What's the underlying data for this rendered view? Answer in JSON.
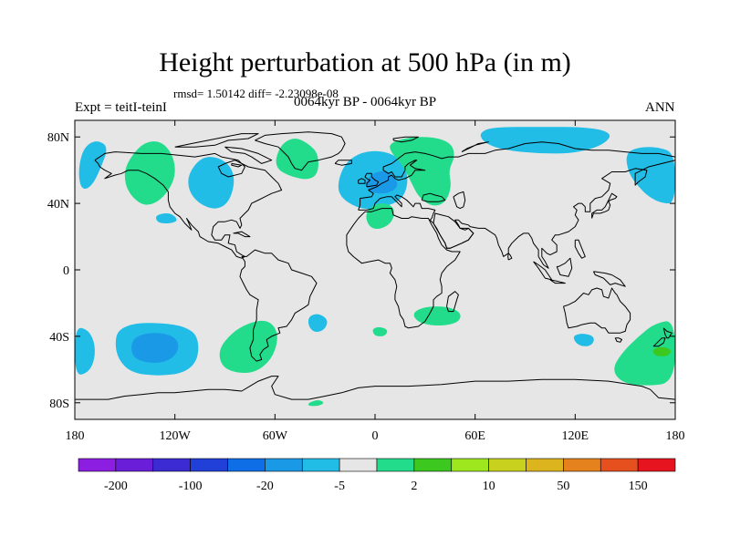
{
  "header": {
    "title": "Height perturbation at 500 hPa (in m)",
    "stats": "rmsd= 1.50142 diff= -2.23098e-08",
    "period": "0064kyr BP - 0064kyr BP",
    "experiment": "Expt = teitI-teinI",
    "season": "ANN"
  },
  "chart_data": {
    "type": "heatmap",
    "title": "Height perturbation at 500 hPa (in m)",
    "xlabel": "",
    "ylabel": "",
    "xlim": [
      -180,
      180
    ],
    "ylim": [
      -90,
      90
    ],
    "x_ticks": [
      {
        "value": -180,
        "label": "180"
      },
      {
        "value": -120,
        "label": "120W"
      },
      {
        "value": -60,
        "label": "60W"
      },
      {
        "value": 0,
        "label": "0"
      },
      {
        "value": 60,
        "label": "60E"
      },
      {
        "value": 120,
        "label": "120E"
      },
      {
        "value": 180,
        "label": "180"
      }
    ],
    "y_ticks": [
      {
        "value": 80,
        "label": "80N"
      },
      {
        "value": 40,
        "label": "40N"
      },
      {
        "value": 0,
        "label": "0"
      },
      {
        "value": -40,
        "label": "40S"
      },
      {
        "value": -80,
        "label": "80S"
      }
    ],
    "colorbar": {
      "colors": [
        "#8b1ee0",
        "#6a1ed8",
        "#3c2bd2",
        "#2140d8",
        "#0e6ee6",
        "#1a9ae6",
        "#22bde6",
        "#e6e6e6",
        "#22dc8c",
        "#3cc81e",
        "#9ee61e",
        "#c8d21e",
        "#dcb41e",
        "#e6821e",
        "#e6501e",
        "#e6141e"
      ],
      "tick_labels": [
        "-200",
        "-100",
        "-20",
        "-5",
        "2",
        "10",
        "50",
        "150"
      ]
    },
    "anomaly_regions": [
      {
        "category": "-5 to -2",
        "color": "#22bde6",
        "polygon": [
          [
            -178,
            58
          ],
          [
            -176,
            70
          ],
          [
            -172,
            76
          ],
          [
            -166,
            78
          ],
          [
            -160,
            74
          ],
          [
            -164,
            62
          ],
          [
            -170,
            50
          ],
          [
            -176,
            48
          ]
        ]
      },
      {
        "category": "2 to 5",
        "color": "#22dc8c",
        "polygon": [
          [
            -150,
            62
          ],
          [
            -142,
            74
          ],
          [
            -134,
            78
          ],
          [
            -126,
            76
          ],
          [
            -120,
            66
          ],
          [
            -120,
            54
          ],
          [
            -128,
            42
          ],
          [
            -138,
            38
          ],
          [
            -146,
            44
          ],
          [
            -150,
            52
          ]
        ]
      },
      {
        "category": "-5 to -2",
        "color": "#22bde6",
        "polygon": [
          [
            -112,
            58
          ],
          [
            -104,
            68
          ],
          [
            -94,
            68
          ],
          [
            -86,
            62
          ],
          [
            -84,
            52
          ],
          [
            -88,
            40
          ],
          [
            -96,
            36
          ],
          [
            -106,
            40
          ],
          [
            -112,
            48
          ]
        ]
      },
      {
        "category": "-5 to -2",
        "color": "#22bde6",
        "polygon": [
          [
            -132,
            32
          ],
          [
            -128,
            34
          ],
          [
            -122,
            34
          ],
          [
            -118,
            30
          ],
          [
            -122,
            28
          ],
          [
            -130,
            28
          ]
        ]
      },
      {
        "category": "2 to 5",
        "color": "#22dc8c",
        "polygon": [
          [
            -60,
            66
          ],
          [
            -56,
            76
          ],
          [
            -48,
            80
          ],
          [
            -40,
            76
          ],
          [
            -34,
            70
          ],
          [
            -34,
            58
          ],
          [
            -40,
            54
          ],
          [
            -50,
            56
          ],
          [
            -58,
            60
          ]
        ]
      },
      {
        "category": "-5 to -2",
        "color": "#22bde6",
        "polygon": [
          [
            -22,
            54
          ],
          [
            -18,
            64
          ],
          [
            -10,
            70
          ],
          [
            0,
            72
          ],
          [
            10,
            70
          ],
          [
            18,
            64
          ],
          [
            20,
            52
          ],
          [
            16,
            42
          ],
          [
            6,
            38
          ],
          [
            -6,
            36
          ],
          [
            -16,
            40
          ],
          [
            -22,
            46
          ]
        ]
      },
      {
        "category": "-20 to -5",
        "color": "#1a9ae6",
        "polygon": [
          [
            -6,
            52
          ],
          [
            -2,
            58
          ],
          [
            6,
            60
          ],
          [
            12,
            56
          ],
          [
            14,
            50
          ],
          [
            8,
            46
          ],
          [
            0,
            46
          ],
          [
            -4,
            48
          ]
        ]
      },
      {
        "category": "2 to 5",
        "color": "#22dc8c",
        "polygon": [
          [
            8,
            76
          ],
          [
            20,
            80
          ],
          [
            36,
            80
          ],
          [
            46,
            76
          ],
          [
            48,
            68
          ],
          [
            44,
            60
          ],
          [
            46,
            50
          ],
          [
            42,
            40
          ],
          [
            34,
            38
          ],
          [
            26,
            44
          ],
          [
            22,
            52
          ],
          [
            16,
            64
          ],
          [
            10,
            70
          ]
        ]
      },
      {
        "category": "2 to 5",
        "color": "#22dc8c",
        "polygon": [
          [
            -6,
            34
          ],
          [
            0,
            40
          ],
          [
            8,
            40
          ],
          [
            12,
            36
          ],
          [
            10,
            28
          ],
          [
            2,
            24
          ],
          [
            -4,
            26
          ]
        ]
      },
      {
        "category": "-5 to -2",
        "color": "#22bde6",
        "polygon": [
          [
            62,
            82
          ],
          [
            70,
            86
          ],
          [
            100,
            86
          ],
          [
            124,
            86
          ],
          [
            138,
            84
          ],
          [
            142,
            80
          ],
          [
            134,
            74
          ],
          [
            118,
            70
          ],
          [
            98,
            70
          ],
          [
            78,
            72
          ],
          [
            66,
            76
          ]
        ]
      },
      {
        "category": "-5 to -2",
        "color": "#22bde6",
        "polygon": [
          [
            150,
            70
          ],
          [
            158,
            74
          ],
          [
            170,
            74
          ],
          [
            180,
            70
          ],
          [
            180,
            40
          ],
          [
            172,
            40
          ],
          [
            164,
            44
          ],
          [
            158,
            50
          ],
          [
            152,
            58
          ]
        ]
      },
      {
        "category": "-5 to -2",
        "color": "#22bde6",
        "polygon": [
          [
            -180,
            -34
          ],
          [
            -172,
            -36
          ],
          [
            -168,
            -44
          ],
          [
            -168,
            -54
          ],
          [
            -172,
            -62
          ],
          [
            -180,
            -64
          ]
        ]
      },
      {
        "category": "-5 to -2",
        "color": "#22bde6",
        "polygon": [
          [
            -154,
            -36
          ],
          [
            -144,
            -32
          ],
          [
            -128,
            -32
          ],
          [
            -114,
            -34
          ],
          [
            -106,
            -40
          ],
          [
            -106,
            -54
          ],
          [
            -114,
            -62
          ],
          [
            -130,
            -64
          ],
          [
            -146,
            -62
          ],
          [
            -154,
            -54
          ],
          [
            -156,
            -44
          ]
        ]
      },
      {
        "category": "-20 to -5",
        "color": "#1a9ae6",
        "polygon": [
          [
            -146,
            -42
          ],
          [
            -138,
            -38
          ],
          [
            -126,
            -38
          ],
          [
            -118,
            -42
          ],
          [
            -118,
            -50
          ],
          [
            -126,
            -56
          ],
          [
            -138,
            -56
          ],
          [
            -146,
            -52
          ]
        ]
      },
      {
        "category": "2 to 5",
        "color": "#22dc8c",
        "polygon": [
          [
            -94,
            -48
          ],
          [
            -86,
            -38
          ],
          [
            -76,
            -32
          ],
          [
            -66,
            -30
          ],
          [
            -60,
            -34
          ],
          [
            -58,
            -42
          ],
          [
            -62,
            -54
          ],
          [
            -72,
            -62
          ],
          [
            -84,
            -62
          ],
          [
            -92,
            -58
          ]
        ]
      },
      {
        "category": "-5 to -2",
        "color": "#22bde6",
        "polygon": [
          [
            -40,
            -28
          ],
          [
            -34,
            -26
          ],
          [
            -28,
            -30
          ],
          [
            -30,
            -36
          ],
          [
            -36,
            -38
          ],
          [
            -40,
            -34
          ]
        ]
      },
      {
        "category": "2 to 5",
        "color": "#22dc8c",
        "polygon": [
          [
            -40,
            -80
          ],
          [
            -34,
            -78
          ],
          [
            -30,
            -80
          ],
          [
            -34,
            -82
          ],
          [
            -40,
            -82
          ]
        ]
      },
      {
        "category": "2 to 5",
        "color": "#22dc8c",
        "polygon": [
          [
            -2,
            -36
          ],
          [
            2,
            -34
          ],
          [
            8,
            -36
          ],
          [
            6,
            -40
          ],
          [
            0,
            -40
          ]
        ]
      },
      {
        "category": "2 to 5",
        "color": "#22dc8c",
        "polygon": [
          [
            22,
            -26
          ],
          [
            30,
            -22
          ],
          [
            44,
            -22
          ],
          [
            52,
            -26
          ],
          [
            50,
            -32
          ],
          [
            38,
            -34
          ],
          [
            26,
            -32
          ]
        ]
      },
      {
        "category": "-5 to -2",
        "color": "#22bde6",
        "polygon": [
          [
            118,
            -40
          ],
          [
            124,
            -38
          ],
          [
            132,
            -40
          ],
          [
            130,
            -46
          ],
          [
            122,
            -46
          ]
        ]
      },
      {
        "category": "2 to 5",
        "color": "#22dc8c",
        "polygon": [
          [
            142,
            -60
          ],
          [
            148,
            -50
          ],
          [
            158,
            -40
          ],
          [
            168,
            -32
          ],
          [
            180,
            -30
          ],
          [
            180,
            -68
          ],
          [
            162,
            -70
          ],
          [
            148,
            -68
          ]
        ]
      },
      {
        "category": "5 to 10",
        "color": "#3cc81e",
        "polygon": [
          [
            166,
            -48
          ],
          [
            172,
            -46
          ],
          [
            178,
            -48
          ],
          [
            176,
            -52
          ],
          [
            168,
            -52
          ]
        ]
      }
    ]
  }
}
